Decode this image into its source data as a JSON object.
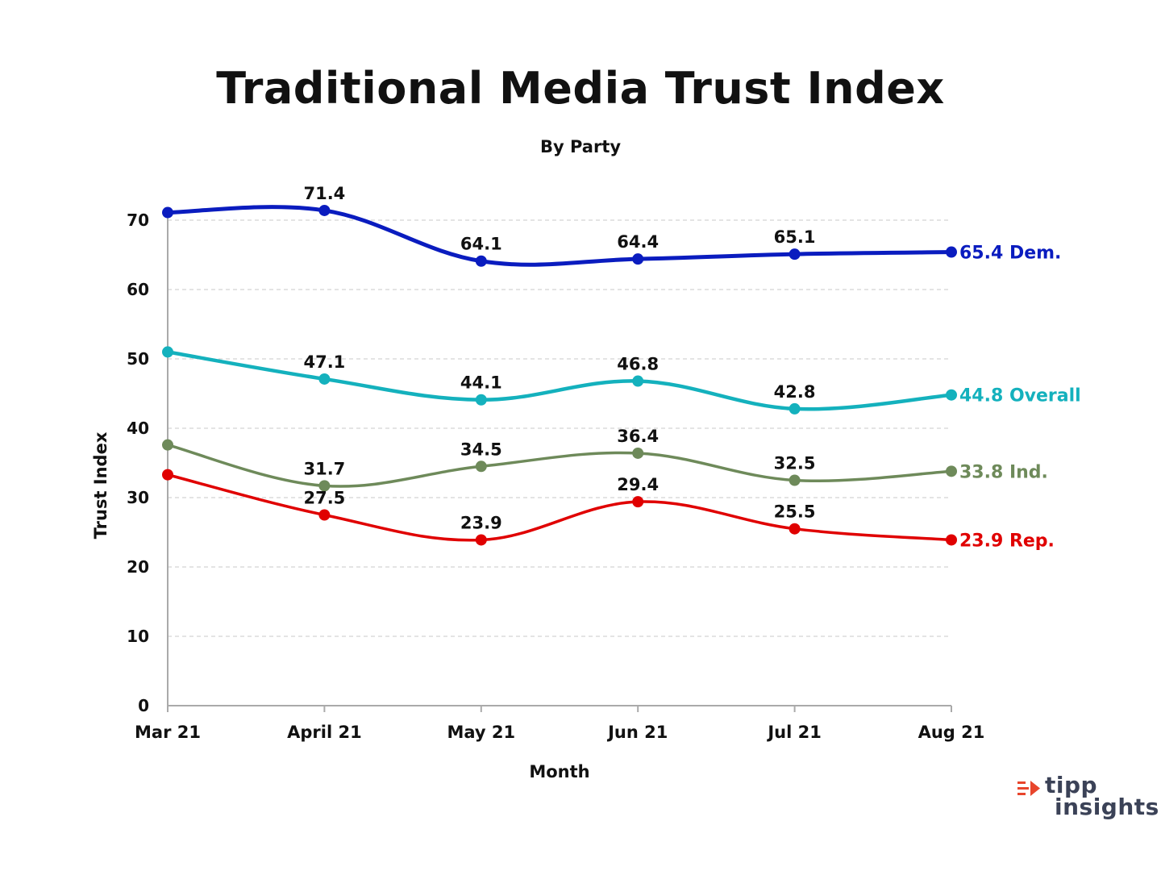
{
  "title": "Traditional Media Trust Index",
  "subtitle": "By Party",
  "logo": {
    "word1": "tipp",
    "word2": "insights",
    "icon": "signal-arrow-icon"
  },
  "colors": {
    "dem": "#0a1cbf",
    "overall": "#14b1bd",
    "ind": "#6e8a5a",
    "rep": "#e00000"
  },
  "chart_data": {
    "type": "line",
    "title": "Traditional Media Trust Index",
    "subtitle": "By Party",
    "xlabel": "Month",
    "ylabel": "Trust Index",
    "categories": [
      "Mar 21",
      "April 21",
      "May 21",
      "Jun 21",
      "Jul 21",
      "Aug 21"
    ],
    "ylim": [
      0,
      75
    ],
    "yticks": [
      0,
      10,
      20,
      30,
      40,
      50,
      60,
      70
    ],
    "grid": "horizontal dashed",
    "legend": "end-of-line labels",
    "series": [
      {
        "key": "dem",
        "name": "Dem.",
        "color": "#0a1cbf",
        "values": [
          71.1,
          71.4,
          64.1,
          64.4,
          65.1,
          65.4
        ],
        "labels": [
          "",
          "71.4",
          "64.1",
          "64.4",
          "65.1",
          ""
        ],
        "end_label": "65.4 Dem."
      },
      {
        "key": "overall",
        "name": "Overall",
        "color": "#14b1bd",
        "values": [
          51.0,
          47.1,
          44.1,
          46.8,
          42.8,
          44.8
        ],
        "labels": [
          "",
          "47.1",
          "44.1",
          "46.8",
          "42.8",
          ""
        ],
        "end_label": "44.8 Overall"
      },
      {
        "key": "ind",
        "name": "Ind.",
        "color": "#6e8a5a",
        "values": [
          37.6,
          31.7,
          34.5,
          36.4,
          32.5,
          33.8
        ],
        "labels": [
          "",
          "31.7",
          "34.5",
          "36.4",
          "32.5",
          ""
        ],
        "end_label": "33.8 Ind."
      },
      {
        "key": "rep",
        "name": "Rep.",
        "color": "#e00000",
        "values": [
          33.3,
          27.5,
          23.9,
          29.4,
          25.5,
          23.9
        ],
        "labels": [
          "",
          "27.5",
          "23.9",
          "29.4",
          "25.5",
          ""
        ],
        "end_label": "23.9 Rep."
      }
    ]
  }
}
